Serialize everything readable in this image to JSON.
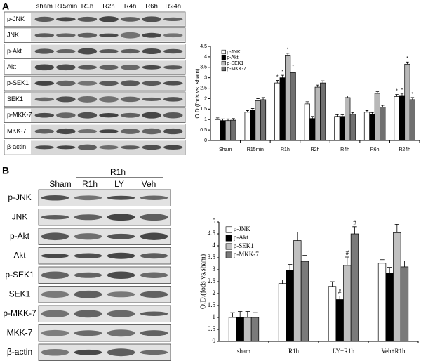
{
  "panels": {
    "A": {
      "label": "A",
      "lanes": [
        "sham",
        "R15min",
        "R1h",
        "R2h",
        "R4h",
        "R6h",
        "R24h"
      ],
      "rows": [
        "p-JNK",
        "JNK",
        "p-Akt",
        "Akt",
        "p-SEK1",
        "SEK1",
        "p-MKK-7",
        "MKK-7",
        "β-actin"
      ]
    },
    "B": {
      "label": "B",
      "group": "R1h",
      "lanes": [
        "Sham",
        "R1h",
        "LY",
        "Veh"
      ],
      "rows": [
        "p-JNK",
        "JNK",
        "p-Akt",
        "Akt",
        "p-SEK1",
        "SEK1",
        "p-MKK-7",
        "MKK-7",
        "β-actin"
      ]
    }
  },
  "chart_data": [
    {
      "type": "bar",
      "ylabel": "O.D.(fods vs. sham)",
      "categories": [
        "Sham",
        "R15min",
        "R1h",
        "R2h",
        "R4h",
        "R6h",
        "R24h"
      ],
      "series": [
        {
          "name": "p-JNK",
          "color": "#ffffff",
          "values": [
            1.0,
            1.35,
            2.75,
            1.75,
            1.15,
            1.35,
            2.1
          ],
          "errors": [
            0.08,
            0.08,
            0.12,
            0.1,
            0.08,
            0.08,
            0.1
          ],
          "marks": [
            null,
            null,
            "*",
            null,
            null,
            null,
            "*"
          ]
        },
        {
          "name": "p-Akt",
          "color": "#000000",
          "values": [
            0.95,
            1.45,
            3.0,
            1.05,
            1.15,
            1.25,
            2.15
          ],
          "errors": [
            0.08,
            0.08,
            0.12,
            0.1,
            0.08,
            0.08,
            0.1
          ],
          "marks": [
            null,
            null,
            "*",
            null,
            null,
            null,
            "*"
          ]
        },
        {
          "name": "p-SEK1",
          "color": "#b8b8b8",
          "values": [
            0.95,
            1.9,
            4.05,
            2.55,
            2.05,
            2.25,
            3.65
          ],
          "errors": [
            0.08,
            0.1,
            0.12,
            0.1,
            0.08,
            0.08,
            0.1
          ],
          "marks": [
            null,
            null,
            "*",
            null,
            null,
            null,
            "*"
          ]
        },
        {
          "name": "p-MKK-7",
          "color": "#707070",
          "values": [
            0.97,
            1.95,
            3.25,
            2.75,
            1.25,
            1.6,
            1.95
          ],
          "errors": [
            0.08,
            0.1,
            0.12,
            0.1,
            0.08,
            0.08,
            0.1
          ],
          "marks": [
            null,
            null,
            "*",
            null,
            null,
            null,
            "*"
          ]
        }
      ],
      "ylim": [
        0,
        4.5
      ],
      "yticks": [
        0,
        0.5,
        1,
        1.5,
        2,
        2.5,
        3,
        3.5,
        4,
        4.5
      ],
      "legend": "upper-left"
    },
    {
      "type": "bar",
      "ylabel": "O.D.(fods vs.sham)",
      "categories": [
        "sham",
        "R1h",
        "LY+R1h",
        "Veh+R1h"
      ],
      "series": [
        {
          "name": "p-JNK",
          "color": "#ffffff",
          "values": [
            1.0,
            2.42,
            2.3,
            3.27
          ],
          "errors": [
            0.2,
            0.15,
            0.2,
            0.15
          ],
          "marks": [
            null,
            null,
            null,
            null
          ]
        },
        {
          "name": "p-Akt",
          "color": "#000000",
          "values": [
            1.0,
            2.97,
            1.75,
            2.85
          ],
          "errors": [
            0.25,
            0.25,
            0.15,
            0.25
          ],
          "marks": [
            null,
            null,
            "#",
            null
          ]
        },
        {
          "name": "p-SEK1",
          "color": "#c0c0c0",
          "values": [
            1.0,
            4.22,
            3.18,
            4.55
          ],
          "errors": [
            0.25,
            0.35,
            0.35,
            0.35
          ],
          "marks": [
            null,
            null,
            "#",
            null
          ]
        },
        {
          "name": "p-MKK-7",
          "color": "#7a7a7a",
          "values": [
            1.0,
            3.35,
            4.5,
            3.12
          ],
          "errors": [
            0.2,
            0.25,
            0.3,
            0.25
          ],
          "marks": [
            null,
            null,
            "#",
            null
          ]
        }
      ],
      "ylim": [
        0,
        5
      ],
      "yticks": [
        0,
        0.5,
        1,
        1.5,
        2,
        2.5,
        3,
        3.5,
        4,
        4.5,
        5
      ],
      "legend": "upper-left"
    }
  ]
}
